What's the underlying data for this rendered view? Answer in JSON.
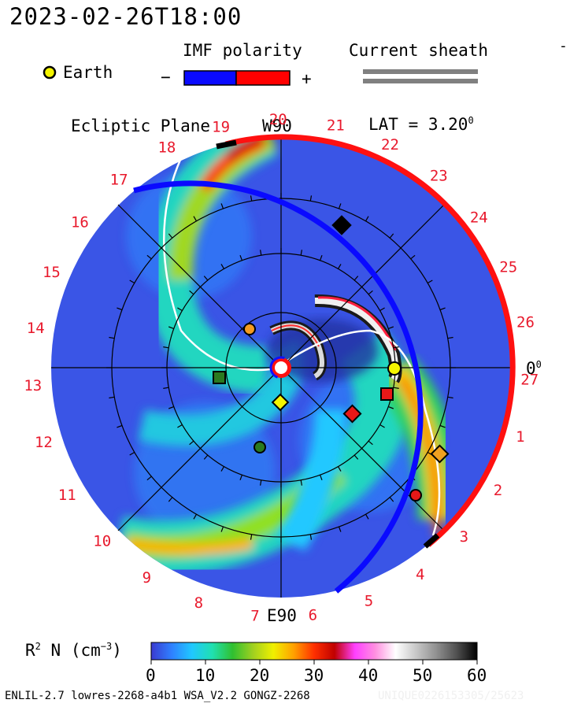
{
  "header": {
    "datetime": "2023-02-26T18:00",
    "earth_label": "Earth",
    "imf_title": "IMF polarity",
    "imf_minus": "−",
    "imf_plus": "+",
    "sheath_title": "Current sheath",
    "dash": "-"
  },
  "plot": {
    "plane_label": "Ecliptic Plane",
    "top_label": "W90",
    "bottom_label": "E90",
    "lat_text": "LAT = 3.20",
    "lat_sup": "0",
    "zero_deg": "0",
    "zero_sup": "0",
    "ring_numbers": [
      "19",
      "20",
      "21",
      "22",
      "23",
      "24",
      "25",
      "26",
      "27",
      "1",
      "2",
      "3",
      "4",
      "5",
      "6",
      "7",
      "8",
      "9",
      "10",
      "11",
      "12",
      "13",
      "14",
      "15",
      "16",
      "17",
      "18"
    ]
  },
  "colorbar": {
    "label_main": "R",
    "label_sup": "2",
    "label_rest": " N (cm",
    "label_exp": "−3",
    "label_close": ")",
    "ticks": [
      "0",
      "10",
      "20",
      "30",
      "40",
      "50",
      "60"
    ],
    "colors": [
      "#3a3ad0",
      "#2f80ff",
      "#20c8ff",
      "#20e0b0",
      "#30c030",
      "#a0d020",
      "#f0f000",
      "#ffa000",
      "#ff3000",
      "#c00000",
      "#ff40ff",
      "#ff90e0",
      "#ffffff",
      "#c8c8c8",
      "#909090",
      "#505050",
      "#000000"
    ]
  },
  "footer": {
    "text": "ENLIL-2.7 lowres-2268-a4b1 WSA_V2.2 GONGZ-2268",
    "watermark": "UNIQUE0226153305/25623"
  },
  "markers": [
    {
      "name": "earth",
      "shape": "circle",
      "color": "#f5f500"
    },
    {
      "name": "stereo-a",
      "shape": "square",
      "color": "#e81818"
    },
    {
      "name": "mars",
      "shape": "diamond",
      "color": "#e81818"
    },
    {
      "name": "mercury",
      "shape": "diamond",
      "color": "#f5f500"
    },
    {
      "name": "venus",
      "shape": "circle",
      "color": "#f59b20"
    },
    {
      "name": "jupiter",
      "shape": "diamond",
      "color": "#000000"
    },
    {
      "name": "spacecraft-green-square",
      "shape": "square",
      "color": "#2a7a20"
    },
    {
      "name": "spacecraft-green-circle",
      "shape": "circle",
      "color": "#2a7a20"
    },
    {
      "name": "spacecraft-red-circle",
      "shape": "circle",
      "color": "#e81818"
    },
    {
      "name": "spacecraft-orange-diamond",
      "shape": "diamond",
      "color": "#f0a020"
    }
  ]
}
